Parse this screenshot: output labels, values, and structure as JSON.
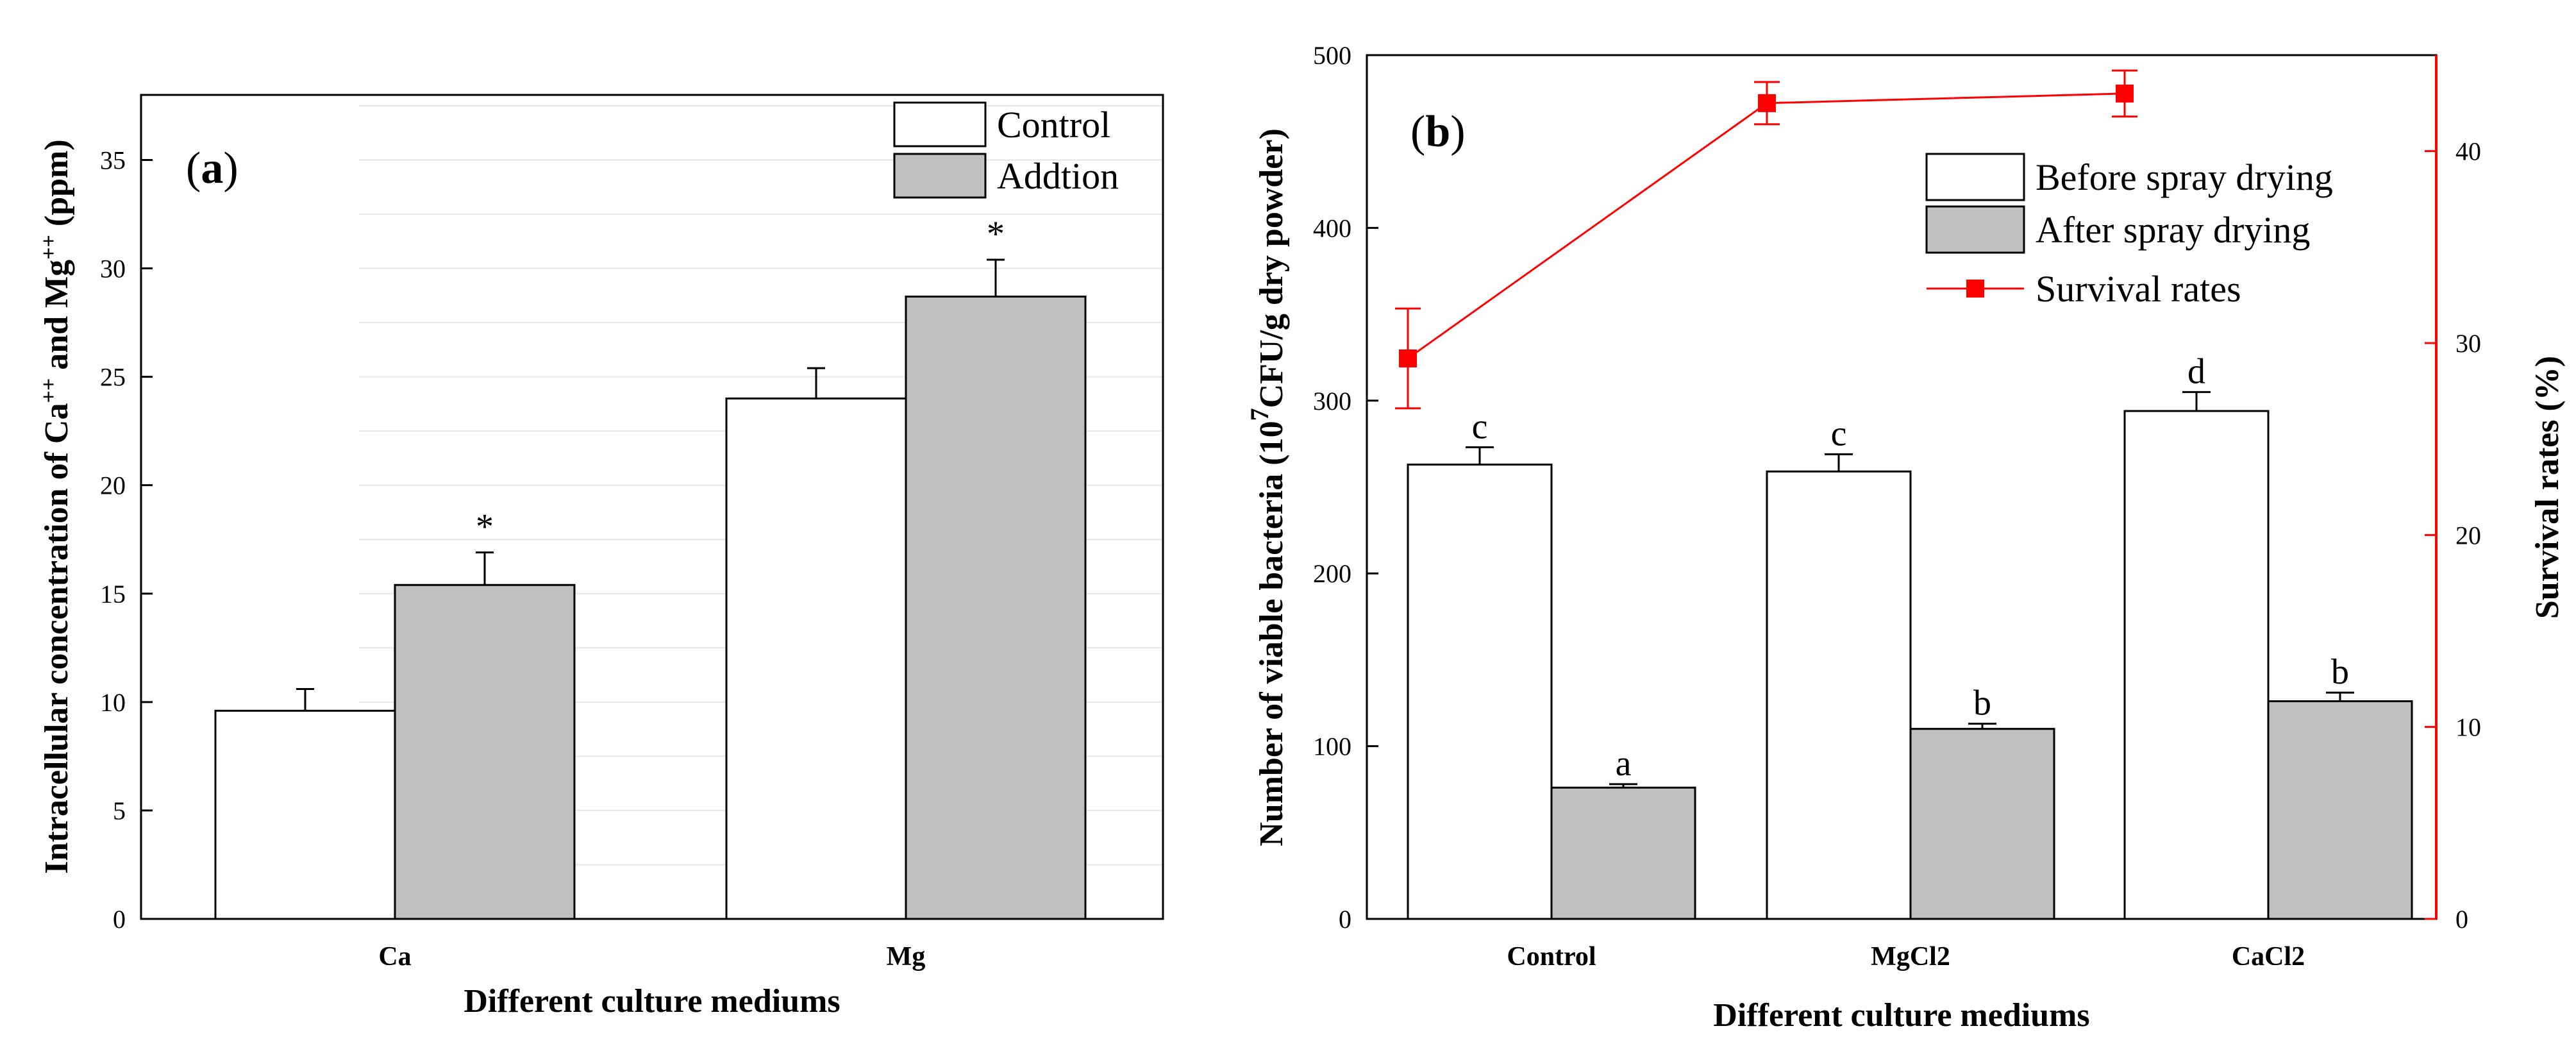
{
  "chart_data": [
    {
      "panel": "(a)",
      "panel_letter": "a",
      "type": "bar",
      "xlabel": "Different culture mediums",
      "ylabel_parts": [
        "Intracellular concentration of Ca",
        "++",
        " and Mg",
        "++",
        " (ppm)"
      ],
      "ylim": [
        0,
        38
      ],
      "yticks": [
        0,
        5,
        10,
        15,
        20,
        25,
        30,
        35
      ],
      "categories": [
        "Ca",
        "Mg"
      ],
      "grid": "horizontal",
      "legend_position": "top-right",
      "series": [
        {
          "name": "Control",
          "color": "#ffffff",
          "values": [
            9.6,
            24.0
          ],
          "errors": [
            1.0,
            1.4
          ],
          "labels": [
            "",
            ""
          ]
        },
        {
          "name": "Addtion",
          "color": "#c0c0c0",
          "values": [
            15.4,
            28.7
          ],
          "errors": [
            1.5,
            1.7
          ],
          "labels": [
            "*",
            "*"
          ]
        }
      ]
    },
    {
      "panel": "(b)",
      "panel_letter": "b",
      "type": "bar",
      "xlabel": "Different culture mediums",
      "ylabel_parts": [
        "Number of viable bacteria (10",
        "7",
        "CFU/g dry powder)"
      ],
      "y2label": "Survival rates (%)",
      "ylim": [
        0,
        500
      ],
      "yticks": [
        0,
        100,
        200,
        300,
        400,
        500
      ],
      "y2lim": [
        0,
        45
      ],
      "y2ticks": [
        0,
        10,
        20,
        30,
        40
      ],
      "categories": [
        "Control",
        "MgCl2",
        "CaCl2"
      ],
      "legend_position": "top-right",
      "series": [
        {
          "name": "Before spray drying",
          "color": "#ffffff",
          "values": [
            263,
            259,
            294
          ],
          "errors": [
            10,
            10,
            11
          ],
          "labels": [
            "c",
            "c",
            "d"
          ]
        },
        {
          "name": "After spray drying",
          "color": "#c0c0c0",
          "values": [
            76,
            110,
            126
          ],
          "errors": [
            2,
            3,
            5
          ],
          "labels": [
            "a",
            "b",
            "b"
          ]
        }
      ],
      "line_series": {
        "name": "Survival rates",
        "axis": "right",
        "color": "#ff0000",
        "values": [
          29.2,
          42.5,
          43.0
        ],
        "errors": [
          2.6,
          1.1,
          1.2
        ]
      }
    }
  ]
}
